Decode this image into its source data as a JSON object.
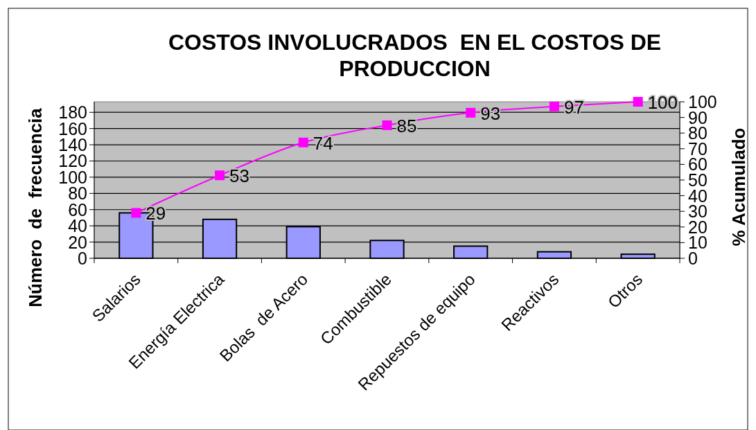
{
  "chart_data": {
    "type": "bar",
    "title": "COSTOS INVOLUCRADOS  EN EL COSTOS DE PRODUCCION",
    "ylabel": "Número  de  frecuencia",
    "y2label": "% Acumulado",
    "categories": [
      "Salarios",
      "Energía Electrica",
      "Bolas  de Acero",
      "Combustible",
      "Repuestos de equipo",
      "Reactivos",
      "Otros"
    ],
    "series": [
      {
        "color": "#9999ff",
        "values": [
          56,
          48,
          39,
          22,
          15,
          8,
          5
        ]
      },
      {
        "type": "line",
        "axis": "y2",
        "color": "#ff00ff",
        "marker": "square",
        "values": [
          29,
          53,
          74,
          85,
          93,
          97,
          100
        ],
        "value_labels": [
          "29",
          "53",
          "74",
          "85",
          "93",
          "97",
          "100"
        ]
      }
    ],
    "ylim": [
      0,
      193
    ],
    "yticks": [
      0,
      20,
      40,
      60,
      80,
      100,
      120,
      140,
      160,
      180
    ],
    "y2lim": [
      0,
      100
    ],
    "y2ticks": [
      0,
      10,
      20,
      30,
      40,
      50,
      60,
      70,
      80,
      90,
      100
    ],
    "grid": "y"
  }
}
